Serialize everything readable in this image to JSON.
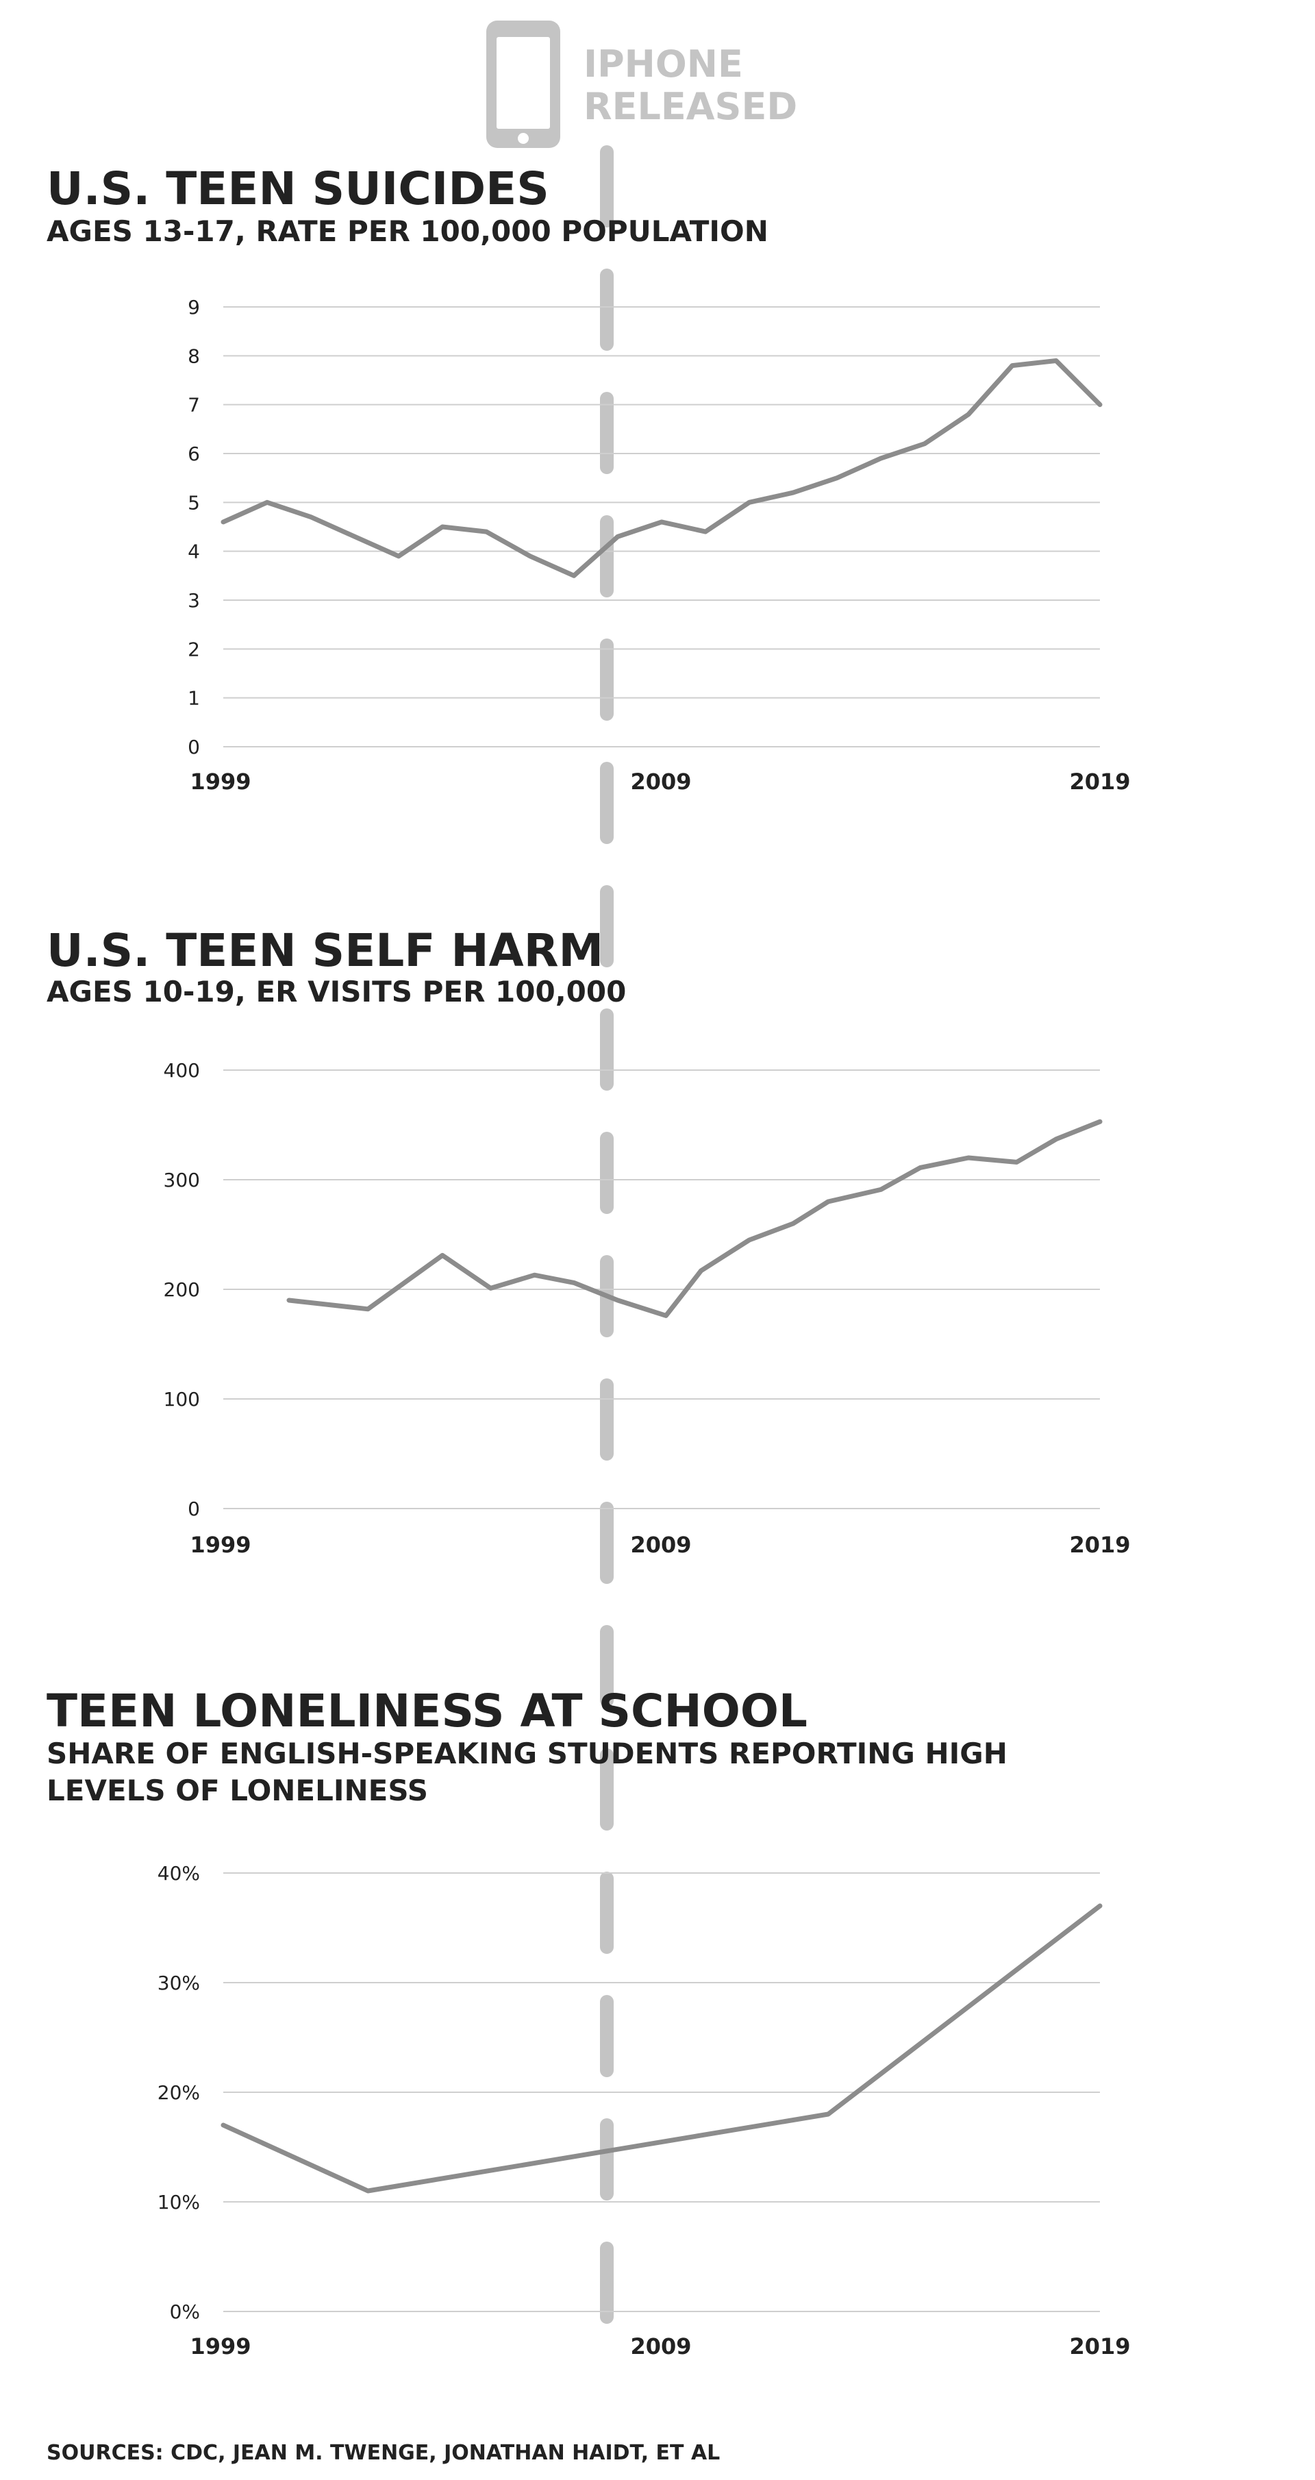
{
  "annotation": {
    "icon": "smartphone-icon",
    "line1": "IPHONE",
    "line2": "RELEASED",
    "x": 2007.75,
    "color": "#c4c4c4"
  },
  "colors": {
    "line": "#8c8c8c",
    "grid": "#cfcfcf",
    "text": "#222222",
    "dash": "#c4c4c4"
  },
  "sources": "SOURCES: CDC, JEAN M. TWENGE, JONATHAN HAIDT, ET AL",
  "chart_data": [
    {
      "type": "line",
      "title": "U.S. TEEN SUICIDES",
      "subtitle": [
        "AGES 13-17, RATE PER 100,000 POPULATION"
      ],
      "xlim": [
        1999,
        2019
      ],
      "x_ticks": [
        "1999",
        "2009",
        "2019"
      ],
      "ylim": [
        0,
        9
      ],
      "y_ticks": [
        "0",
        "1",
        "2",
        "3",
        "4",
        "5",
        "6",
        "7",
        "8",
        "9"
      ],
      "grid": true,
      "series": [
        {
          "x": [
            1999,
            2000,
            2001,
            2002,
            2003,
            2004,
            2005,
            2006,
            2007,
            2008,
            2009,
            2010,
            2011,
            2012,
            2013,
            2014,
            2015,
            2016,
            2017,
            2018,
            2019
          ],
          "y": [
            4.6,
            5.0,
            4.7,
            4.3,
            3.9,
            4.5,
            4.4,
            3.9,
            3.5,
            4.3,
            4.6,
            4.4,
            5.0,
            5.2,
            5.5,
            5.9,
            6.2,
            6.8,
            7.8,
            7.9,
            7.0
          ]
        }
      ]
    },
    {
      "type": "line",
      "title": "U.S. TEEN SELF HARM",
      "subtitle": [
        "AGES 10-19, ER VISITS PER 100,000"
      ],
      "xlim": [
        1999,
        2019
      ],
      "x_ticks": [
        "1999",
        "2009",
        "2019"
      ],
      "ylim": [
        0,
        400
      ],
      "y_ticks": [
        "0",
        "100",
        "200",
        "300",
        "400"
      ],
      "grid": true,
      "series": [
        {
          "x": [
            2000.5,
            2002.3,
            2004,
            2005.1,
            2006.1,
            2007,
            2008,
            2009.1,
            2009.9,
            2011,
            2012,
            2012.8,
            2014,
            2014.9,
            2016,
            2017.1,
            2018,
            2019
          ],
          "y": [
            190,
            182,
            231,
            201,
            213,
            206,
            190,
            176,
            217,
            245,
            260,
            280,
            291,
            311,
            320,
            316,
            337,
            353
          ]
        }
      ]
    },
    {
      "type": "line",
      "title": "TEEN LONELINESS AT SCHOOL",
      "subtitle": [
        "SHARE OF ENGLISH-SPEAKING STUDENTS REPORTING HIGH",
        "LEVELS OF LONELINESS"
      ],
      "xlim": [
        1999,
        2019
      ],
      "x_ticks": [
        "1999",
        "2009",
        "2019"
      ],
      "ylim": [
        0,
        40
      ],
      "y_ticks": [
        "0%",
        "10%",
        "20%",
        "30%",
        "40%"
      ],
      "grid": true,
      "series": [
        {
          "x": [
            1999,
            2002.3,
            2012.8,
            2019
          ],
          "y": [
            17,
            11,
            18,
            37
          ]
        }
      ]
    }
  ]
}
